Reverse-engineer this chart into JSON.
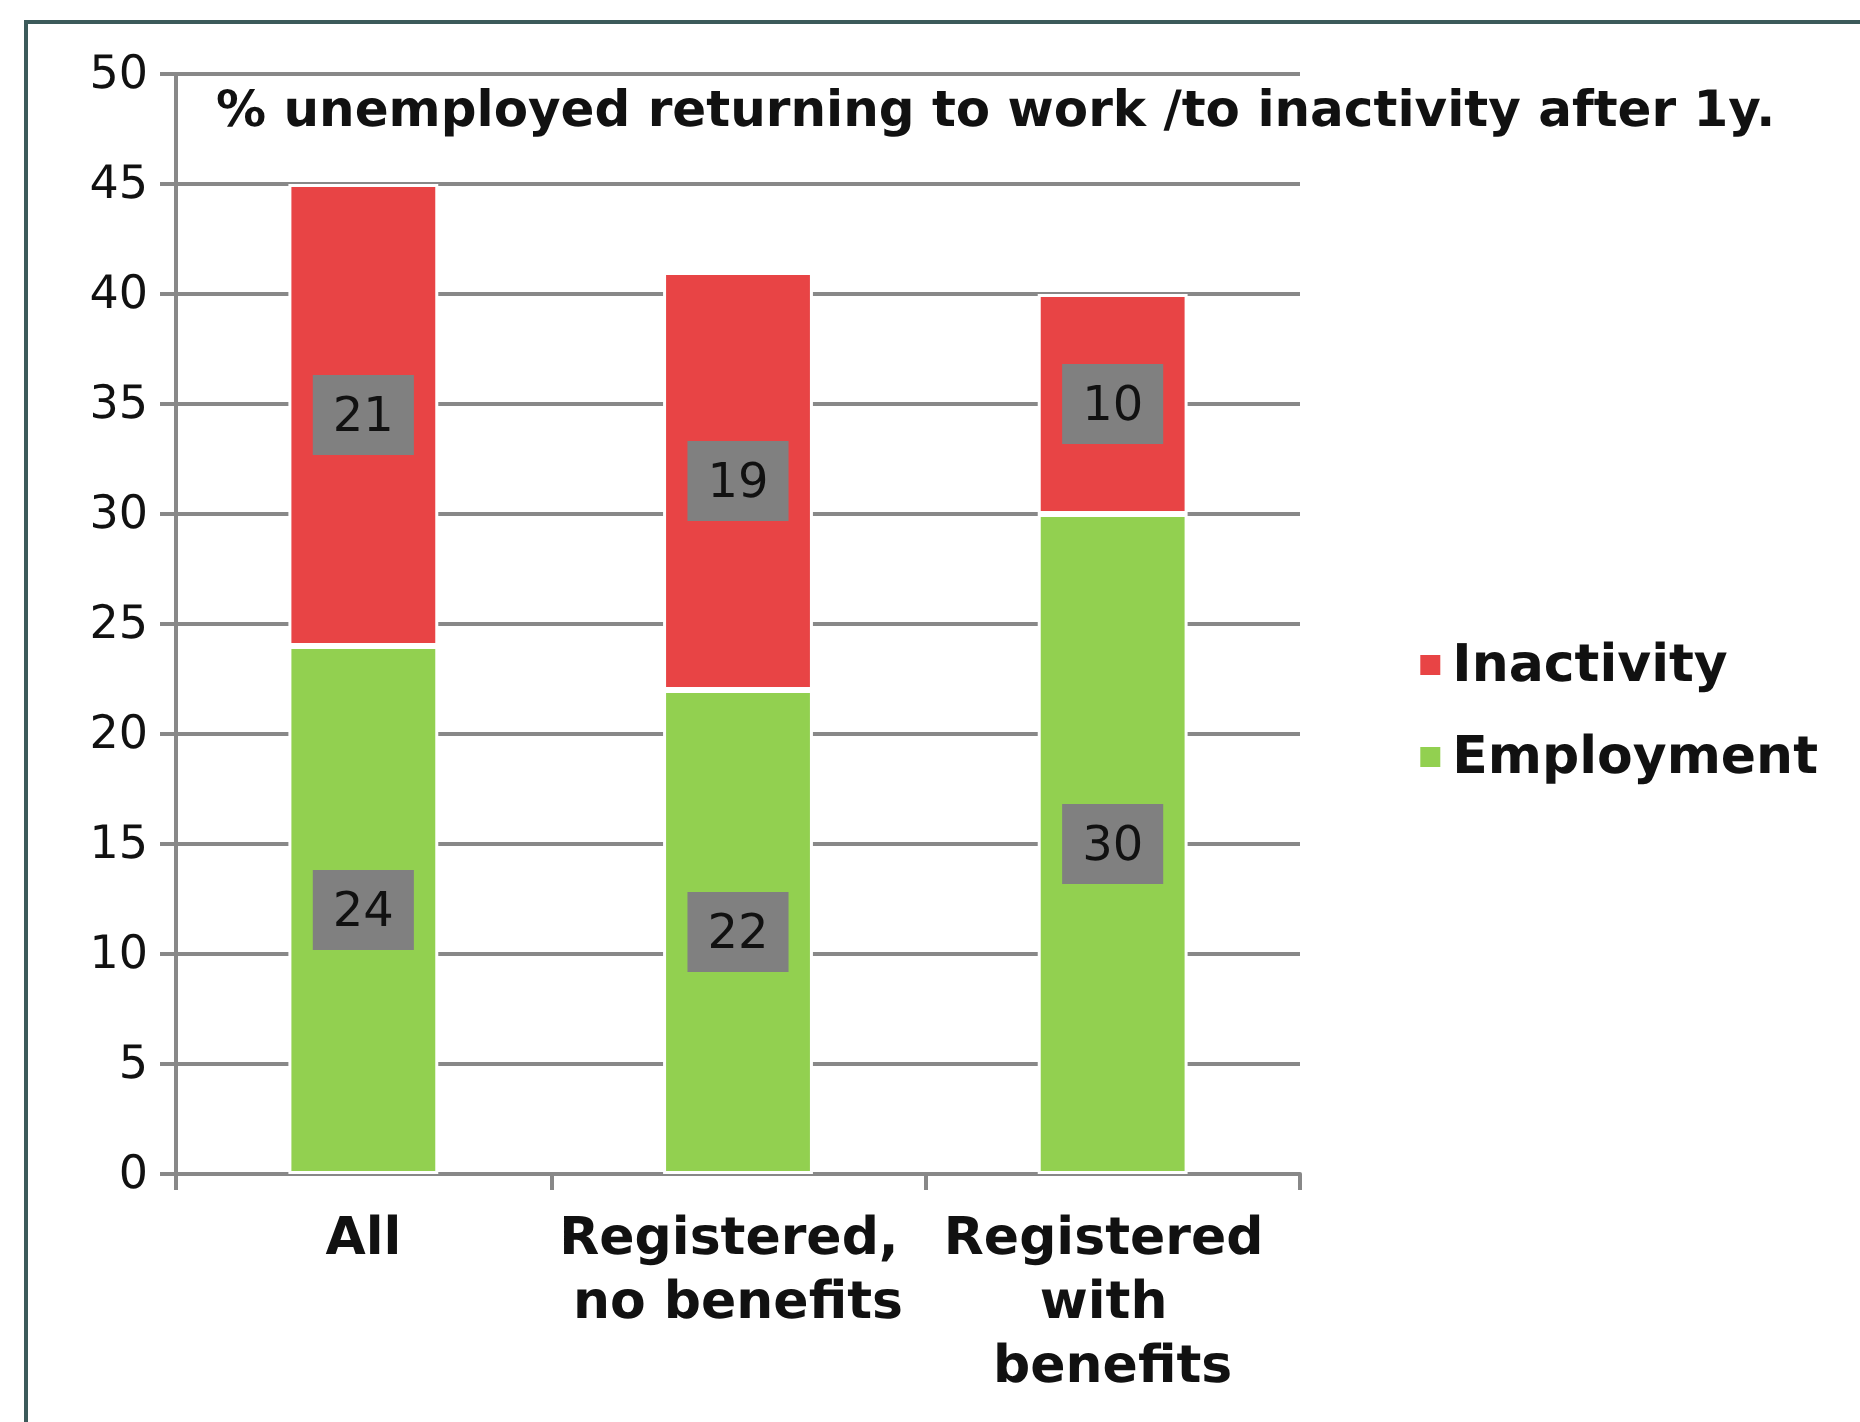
{
  "chart_data": {
    "type": "bar",
    "title": "% unemployed returning to work /to inactivity after 1y.",
    "categories": [
      "All",
      "Registered, no benefits",
      "Registered with benefits"
    ],
    "series": [
      {
        "name": "Employment",
        "color": "#92d050",
        "values": [
          24,
          22,
          30
        ]
      },
      {
        "name": "Inactivity",
        "color": "#e84445",
        "values": [
          21,
          19,
          10
        ]
      }
    ],
    "stacked": true,
    "ylim": [
      0,
      50
    ],
    "yticks": [
      0,
      5,
      10,
      15,
      20,
      25,
      30,
      35,
      40,
      45,
      50
    ],
    "grid": "y",
    "legend": "right",
    "data_labels": true
  }
}
